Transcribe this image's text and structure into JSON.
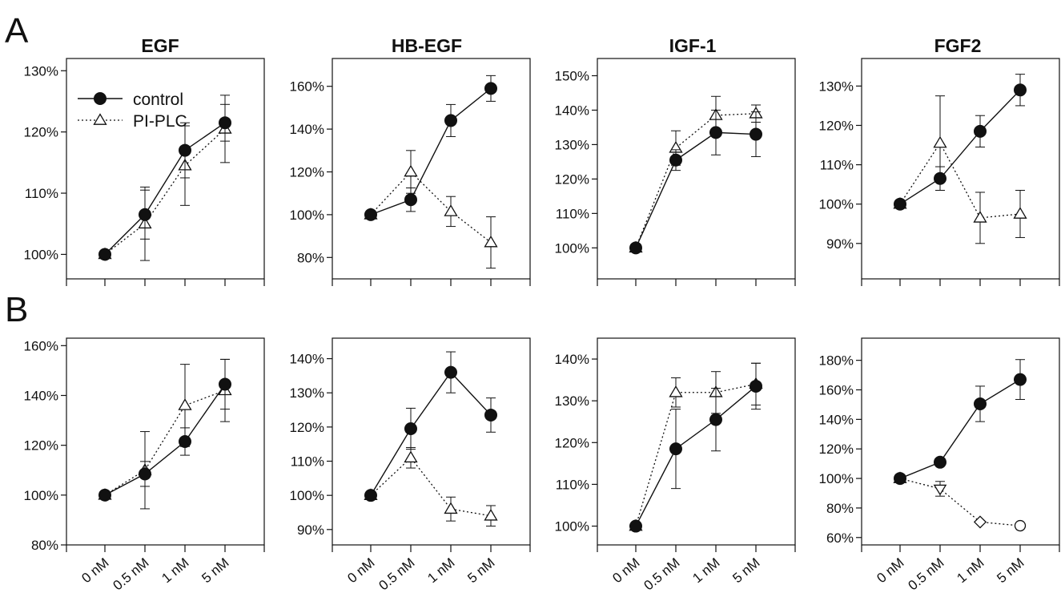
{
  "panel_labels": {
    "a": "A",
    "b": "B"
  },
  "column_titles": [
    "EGF",
    "HB-EGF",
    "IGF-1",
    "FGF2"
  ],
  "legend": {
    "control": "control",
    "treated": "PI-PLC"
  },
  "x_tick_labels": [
    "0 nM",
    "0.5 nM",
    "1 nM",
    "5 nM"
  ],
  "chart_data": [
    {
      "type": "line",
      "row": "A",
      "title": "EGF",
      "categories": [
        "0 nM",
        "0.5 nM",
        "1 nM",
        "5 nM"
      ],
      "ylim": [
        96,
        132
      ],
      "yticks": [
        100,
        110,
        120,
        130
      ],
      "series": [
        {
          "name": "control",
          "marker": "filled-circle",
          "values": [
            100,
            106.5,
            117,
            121.5
          ],
          "errors": [
            0,
            4,
            4.5,
            3
          ]
        },
        {
          "name": "PI-PLC",
          "marker": "open-triangle",
          "values": [
            100,
            105,
            114.5,
            120.5
          ],
          "errors": [
            0,
            6,
            6.5,
            5.5
          ]
        }
      ]
    },
    {
      "type": "line",
      "row": "A",
      "title": "HB-EGF",
      "categories": [
        "0 nM",
        "0.5 nM",
        "1 nM",
        "5 nM"
      ],
      "ylim": [
        70,
        173
      ],
      "yticks": [
        80,
        100,
        120,
        140,
        160
      ],
      "series": [
        {
          "name": "control",
          "marker": "filled-circle",
          "values": [
            100,
            107,
            144,
            159
          ],
          "errors": [
            0,
            5.5,
            7.5,
            6
          ]
        },
        {
          "name": "PI-PLC",
          "marker": "open-triangle",
          "values": [
            100,
            120,
            101.5,
            87
          ],
          "errors": [
            0,
            10,
            7,
            12
          ]
        }
      ]
    },
    {
      "type": "line",
      "row": "A",
      "title": "IGF-1",
      "categories": [
        "0 nM",
        "0.5 nM",
        "1 nM",
        "5 nM"
      ],
      "ylim": [
        91,
        155
      ],
      "yticks": [
        100,
        110,
        120,
        130,
        140,
        150
      ],
      "series": [
        {
          "name": "control",
          "marker": "filled-circle",
          "values": [
            100,
            125.5,
            133.5,
            133
          ],
          "errors": [
            0,
            3,
            6.5,
            6.5
          ]
        },
        {
          "name": "PI-PLC",
          "marker": "open-triangle",
          "values": [
            100,
            129,
            138.5,
            139
          ],
          "errors": [
            0,
            5,
            5.5,
            2.5
          ]
        }
      ]
    },
    {
      "type": "line",
      "row": "A",
      "title": "FGF2",
      "categories": [
        "0 nM",
        "0.5 nM",
        "1 nM",
        "5 nM"
      ],
      "ylim": [
        81,
        137
      ],
      "yticks": [
        90,
        100,
        110,
        120,
        130
      ],
      "series": [
        {
          "name": "control",
          "marker": "filled-circle",
          "values": [
            100,
            106.5,
            118.5,
            129
          ],
          "errors": [
            0,
            3,
            4,
            4
          ]
        },
        {
          "name": "PI-PLC",
          "marker": "open-triangle",
          "values": [
            100,
            115.5,
            96.5,
            97.5
          ],
          "errors": [
            0,
            12,
            6.5,
            6
          ]
        }
      ]
    },
    {
      "type": "line",
      "row": "B",
      "title": "EGF",
      "categories": [
        "0 nM",
        "0.5 nM",
        "1 nM",
        "5 nM"
      ],
      "ylim": [
        80,
        163
      ],
      "yticks": [
        80,
        100,
        120,
        140,
        160
      ],
      "series": [
        {
          "name": "control",
          "marker": "filled-circle",
          "values": [
            100,
            108.5,
            121.5,
            144.5
          ],
          "errors": [
            0,
            5,
            5.5,
            10
          ]
        },
        {
          "name": "PI-PLC",
          "marker": "open-triangle",
          "values": [
            100,
            110,
            136,
            142
          ],
          "errors": [
            0,
            15.5,
            16.5,
            12.5
          ]
        }
      ]
    },
    {
      "type": "line",
      "row": "B",
      "title": "HB-EGF",
      "categories": [
        "0 nM",
        "0.5 nM",
        "1 nM",
        "5 nM"
      ],
      "ylim": [
        85.5,
        146
      ],
      "yticks": [
        90,
        100,
        110,
        120,
        130,
        140
      ],
      "series": [
        {
          "name": "control",
          "marker": "filled-circle",
          "values": [
            100,
            119.5,
            136,
            123.5
          ],
          "errors": [
            0,
            6,
            6,
            5
          ]
        },
        {
          "name": "PI-PLC",
          "marker": "open-triangle",
          "values": [
            100,
            111,
            96,
            94
          ],
          "errors": [
            0,
            3,
            3.5,
            3
          ]
        }
      ]
    },
    {
      "type": "line",
      "row": "B",
      "title": "IGF-1",
      "categories": [
        "0 nM",
        "0.5 nM",
        "1 nM",
        "5 nM"
      ],
      "ylim": [
        95.5,
        145
      ],
      "yticks": [
        100,
        110,
        120,
        130,
        140
      ],
      "series": [
        {
          "name": "control",
          "marker": "filled-circle",
          "values": [
            100,
            118.5,
            125.5,
            133.5
          ],
          "errors": [
            0,
            9.5,
            7.5,
            5.5
          ]
        },
        {
          "name": "PI-PLC",
          "marker": "open-triangle",
          "values": [
            100,
            132,
            132,
            134
          ],
          "errors": [
            0,
            3.5,
            5,
            5
          ]
        }
      ]
    },
    {
      "type": "line",
      "row": "B",
      "title": "FGF2",
      "categories": [
        "0 nM",
        "0.5 nM",
        "1 nM",
        "5 nM"
      ],
      "ylim": [
        55,
        195
      ],
      "yticks": [
        60,
        80,
        100,
        120,
        140,
        160,
        180
      ],
      "series": [
        {
          "name": "control",
          "marker": "filled-circle",
          "values": [
            100,
            111,
            150.5,
            167
          ],
          "errors": [
            0,
            0,
            12,
            13.5
          ]
        },
        {
          "name": "PI-PLC",
          "marker": "open-triangle",
          "point_markers": [
            "triangle",
            "triangle-down",
            "diamond",
            "circle"
          ],
          "values": [
            100,
            93,
            70.5,
            68
          ],
          "errors": [
            0,
            5,
            0,
            0
          ]
        }
      ]
    }
  ]
}
